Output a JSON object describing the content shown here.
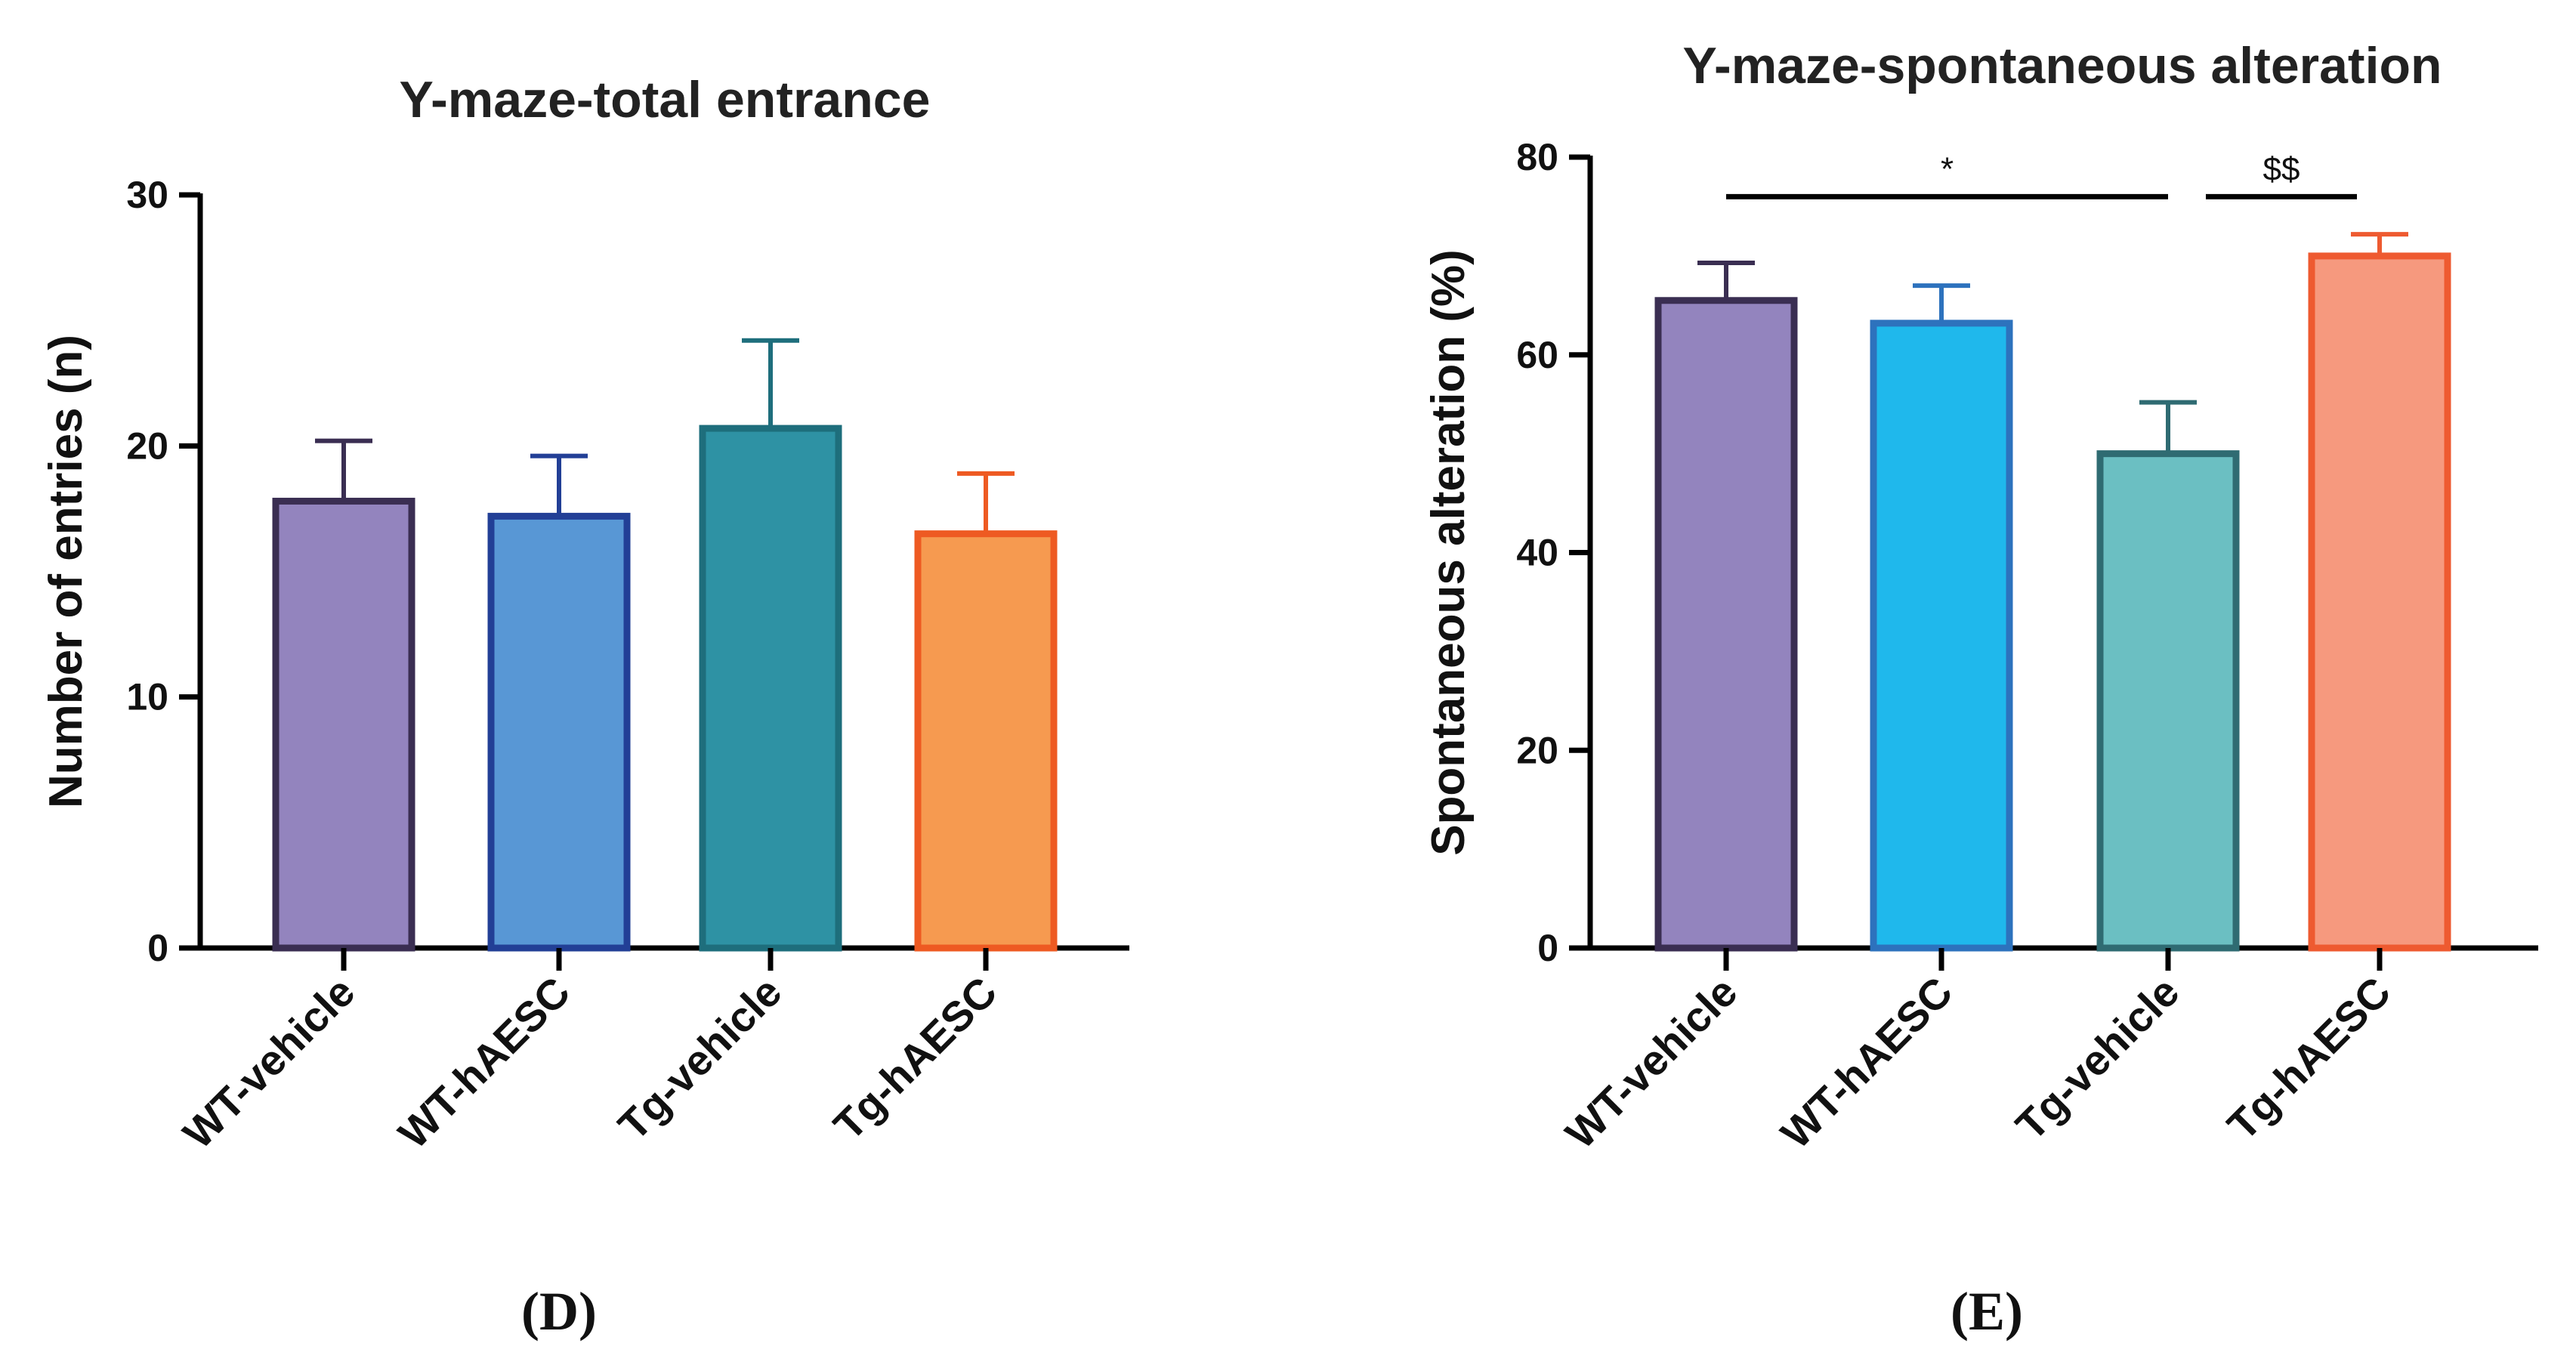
{
  "chart_data": [
    {
      "type": "bar",
      "panel": "(D)",
      "title": "Y-maze-total entrance",
      "xlabel": "",
      "ylabel": "Number of entries  (n)",
      "ylim": [
        0,
        30
      ],
      "yticks": [
        "0",
        "10",
        "20",
        "30"
      ],
      "categories": [
        "WT-vehicle",
        "WT-hAESC",
        "Tg-vehicle",
        "Tg-hAESC"
      ],
      "values": [
        17.8,
        17.2,
        20.7,
        16.5
      ],
      "errors": [
        2.4,
        2.4,
        3.5,
        2.4
      ],
      "fill_colors": [
        "#9384BE",
        "#5897D5",
        "#2E92A4",
        "#F69A50"
      ],
      "edge_colors": [
        "#3A2E52",
        "#223F96",
        "#1E6E7C",
        "#EE5A22"
      ],
      "grid": false,
      "significance": []
    },
    {
      "type": "bar",
      "panel": "(E)",
      "title": "Y-maze-spontaneous alteration",
      "xlabel": "",
      "ylabel": "Spontaneous alteration (%)",
      "ylim": [
        0,
        80
      ],
      "yticks": [
        "0",
        "20",
        "40",
        "60",
        "80"
      ],
      "categories": [
        "WT-vehicle",
        "WT-hAESC",
        "Tg-vehicle",
        "Tg-hAESC"
      ],
      "values": [
        65.5,
        63.2,
        50.0,
        70.0
      ],
      "errors": [
        3.8,
        3.8,
        5.2,
        2.2
      ],
      "fill_colors": [
        "#9384BE",
        "#1FB8EC",
        "#6BBFC2",
        "#F6997E"
      ],
      "edge_colors": [
        "#3A2E52",
        "#2D72BD",
        "#2F6B72",
        "#EE5A30"
      ],
      "grid": false,
      "significance": [
        {
          "from": 0,
          "to": 2,
          "value": 76,
          "label": "*"
        },
        {
          "from": 2,
          "to": 3,
          "value": 76,
          "label": "$$"
        }
      ]
    }
  ]
}
